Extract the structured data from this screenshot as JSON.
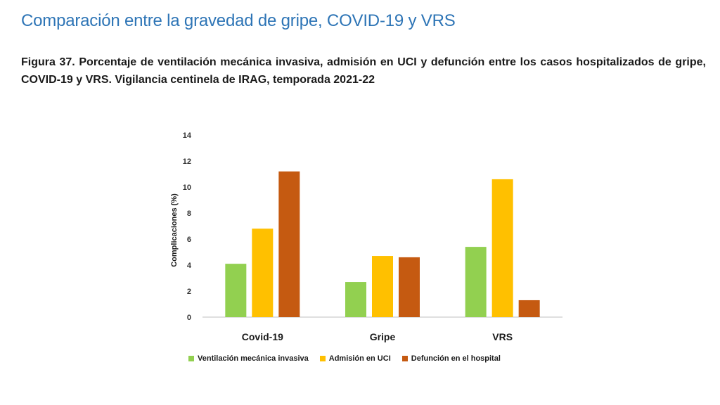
{
  "page": {
    "section_title": "Comparación entre la gravedad de gripe, COVID-19 y VRS",
    "figure_caption": "Figura 37. Porcentaje de ventilación mecánica invasiva, admisión en UCI y defunción entre los casos hospitalizados de gripe, COVID-19 y VRS. Vigilancia centinela de IRAG, temporada 2021-22"
  },
  "chart_data": {
    "type": "bar",
    "title": "",
    "xlabel": "",
    "ylabel": "Complicaciones (%)",
    "categories": [
      "Covid-19",
      "Gripe",
      "VRS"
    ],
    "ylim": [
      0,
      14
    ],
    "yticks": [
      0,
      2,
      4,
      6,
      8,
      10,
      12,
      14
    ],
    "grid": false,
    "legend_position": "bottom",
    "series": [
      {
        "name": "Ventilación mecánica invasiva",
        "color": "#92d050",
        "values": [
          4.1,
          2.7,
          5.4
        ]
      },
      {
        "name": "Admisión en UCI",
        "color": "#ffc000",
        "values": [
          6.8,
          4.7,
          10.6
        ]
      },
      {
        "name": "Defunción en el hospital",
        "color": "#c55a11",
        "values": [
          11.2,
          4.6,
          1.3
        ]
      }
    ]
  }
}
